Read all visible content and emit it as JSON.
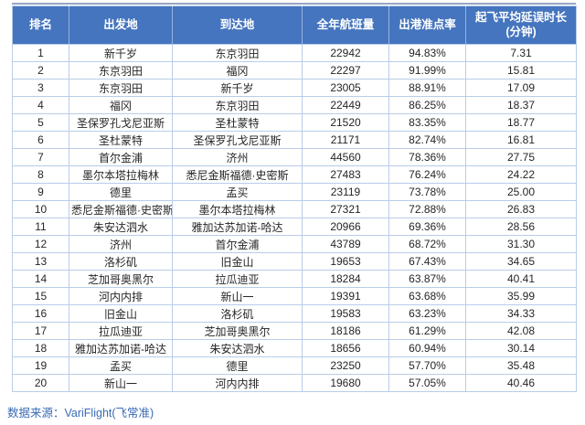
{
  "table": {
    "headers": [
      "排名",
      "出发地",
      "到达地",
      "全年航班量",
      "出港准点率",
      "起飞平均延误时长\n(分钟)"
    ]
  },
  "chart_data": {
    "type": "table",
    "title": "",
    "columns": [
      "排名",
      "出发地",
      "到达地",
      "全年航班量",
      "出港准点率",
      "起飞平均延误时长(分钟)"
    ],
    "field_names": [
      "rank",
      "departure",
      "arrival",
      "annual-flights",
      "ontime-rate",
      "avg-delay"
    ],
    "rows": [
      [
        "1",
        "新千岁",
        "东京羽田",
        "22942",
        "94.83%",
        "7.31"
      ],
      [
        "2",
        "东京羽田",
        "福冈",
        "22297",
        "91.99%",
        "15.81"
      ],
      [
        "3",
        "东京羽田",
        "新千岁",
        "23005",
        "88.91%",
        "17.09"
      ],
      [
        "4",
        "福冈",
        "东京羽田",
        "22449",
        "86.25%",
        "18.37"
      ],
      [
        "5",
        "圣保罗孔戈尼亚斯",
        "圣杜蒙特",
        "21520",
        "83.35%",
        "18.77"
      ],
      [
        "6",
        "圣杜蒙特",
        "圣保罗孔戈尼亚斯",
        "21171",
        "82.74%",
        "16.81"
      ],
      [
        "7",
        "首尔金浦",
        "济州",
        "44560",
        "78.36%",
        "27.75"
      ],
      [
        "8",
        "墨尔本塔拉梅林",
        "悉尼金斯福德·史密斯",
        "27483",
        "76.24%",
        "24.22"
      ],
      [
        "9",
        "德里",
        "孟买",
        "23119",
        "73.78%",
        "25.00"
      ],
      [
        "10",
        "悉尼金斯福德·史密斯",
        "墨尔本塔拉梅林",
        "27321",
        "72.88%",
        "26.83"
      ],
      [
        "11",
        "朱安达泗水",
        "雅加达苏加诺-哈达",
        "20966",
        "69.36%",
        "28.56"
      ],
      [
        "12",
        "济州",
        "首尔金浦",
        "43789",
        "68.72%",
        "31.30"
      ],
      [
        "13",
        "洛杉矶",
        "旧金山",
        "19653",
        "67.43%",
        "34.65"
      ],
      [
        "14",
        "芝加哥奥黑尔",
        "拉瓜迪亚",
        "18284",
        "63.87%",
        "40.41"
      ],
      [
        "15",
        "河内内排",
        "新山一",
        "19391",
        "63.68%",
        "35.99"
      ],
      [
        "16",
        "旧金山",
        "洛杉矶",
        "19583",
        "63.23%",
        "34.33"
      ],
      [
        "17",
        "拉瓜迪亚",
        "芝加哥奥黑尔",
        "18186",
        "61.29%",
        "42.08"
      ],
      [
        "18",
        "雅加达苏加诺-哈达",
        "朱安达泗水",
        "18656",
        "60.94%",
        "30.14"
      ],
      [
        "19",
        "孟买",
        "德里",
        "23250",
        "57.70%",
        "35.48"
      ],
      [
        "20",
        "新山一",
        "河内内排",
        "19680",
        "57.05%",
        "40.46"
      ]
    ]
  },
  "footer": {
    "source": "数据来源：VariFlight(飞常准)"
  },
  "colors": {
    "header_bg": "#4575BE",
    "header_text": "#ffffff",
    "grid_line": "#B9CDE9",
    "body_text": "#262626",
    "source_text": "#3A6BB5"
  }
}
